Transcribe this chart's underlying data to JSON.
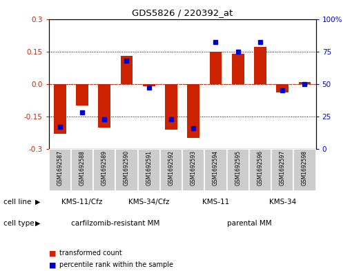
{
  "title": "GDS5826 / 220392_at",
  "samples": [
    "GSM1692587",
    "GSM1692588",
    "GSM1692589",
    "GSM1692590",
    "GSM1692591",
    "GSM1692592",
    "GSM1692593",
    "GSM1692594",
    "GSM1692595",
    "GSM1692596",
    "GSM1692597",
    "GSM1692598"
  ],
  "transformed_count": [
    -0.23,
    -0.1,
    -0.2,
    0.13,
    -0.01,
    -0.21,
    -0.25,
    0.15,
    0.14,
    0.17,
    -0.04,
    0.01
  ],
  "percentile_rank": [
    17,
    28,
    23,
    68,
    47,
    23,
    16,
    82,
    75,
    82,
    45,
    50
  ],
  "red_color": "#cc2200",
  "blue_color": "#0000cc",
  "ylim_left": [
    -0.3,
    0.3
  ],
  "ylim_right": [
    0,
    100
  ],
  "yticks_left": [
    -0.3,
    -0.15,
    0.0,
    0.15,
    0.3
  ],
  "yticks_right": [
    0,
    25,
    50,
    75,
    100
  ],
  "cell_line_groups": [
    {
      "label": "KMS-11/Cfz",
      "start": 0,
      "end": 3,
      "color": "#bbffbb"
    },
    {
      "label": "KMS-34/Cfz",
      "start": 3,
      "end": 6,
      "color": "#bbffbb"
    },
    {
      "label": "KMS-11",
      "start": 6,
      "end": 9,
      "color": "#44cc44"
    },
    {
      "label": "KMS-34",
      "start": 9,
      "end": 12,
      "color": "#44cc44"
    }
  ],
  "cell_type_groups": [
    {
      "label": "carfilzomib-resistant MM",
      "start": 0,
      "end": 6,
      "color": "#ee88ee"
    },
    {
      "label": "parental MM",
      "start": 6,
      "end": 12,
      "color": "#cc44cc"
    }
  ],
  "cell_line_label": "cell line",
  "cell_type_label": "cell type",
  "legend_red": "transformed count",
  "legend_blue": "percentile rank within the sample",
  "bg_color": "#ffffff",
  "plot_bg": "#ffffff",
  "tick_label_color_left": "#cc2200",
  "tick_label_color_right": "#0000cc",
  "bar_width": 0.55,
  "marker_size": 5,
  "sample_box_color": "#cccccc",
  "sample_box_border": "#ffffff"
}
